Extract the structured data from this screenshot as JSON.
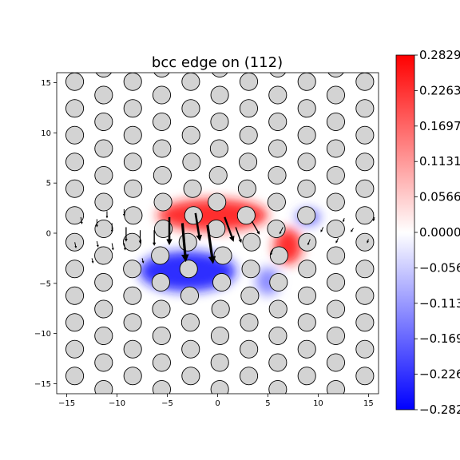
{
  "chart_data": {
    "type": "heatmap",
    "title": "bcc edge on (112)",
    "xlabel": "",
    "ylabel": "",
    "xlim": [
      -16,
      16
    ],
    "ylim": [
      -16,
      16
    ],
    "x_ticks": [
      -15,
      -10,
      -5,
      0,
      5,
      10,
      15
    ],
    "y_ticks": [
      -15,
      -10,
      -5,
      0,
      5,
      10,
      15
    ],
    "colorbar": {
      "cmap": "bwr",
      "min": -0.2829,
      "max": 0.2829,
      "ticks": [
        0.2829,
        0.2263,
        0.1697,
        0.1131,
        0.0566,
        0.0,
        -0.0566,
        -0.1131,
        -0.1697,
        -0.2263,
        -0.2829
      ],
      "tick_labels": [
        "0.2829",
        "0.2263",
        "0.1697",
        "0.1131",
        "0.0566",
        "0.0000",
        "−0.0566",
        "−0.1131",
        "−0.1697",
        "−0.2263",
        "−0.2829"
      ],
      "colors": {
        "max": "#ff0000",
        "mid": "#ffffff",
        "min": "#0000ff"
      }
    },
    "lattice": {
      "row_spacing": 1.3333,
      "column_spacing": 5.77,
      "even_row_x_offset": -5.56,
      "odd_row_x_offset": -2.67,
      "first_row_y": -15.56
    },
    "dislocation_core": {
      "x": 0.0,
      "y": 0.0
    },
    "strain_blobs": [
      {
        "sign": "positive",
        "center": [
          -0.5,
          1.8
        ],
        "spread": [
          5.5,
          1.6
        ],
        "value": 0.26
      },
      {
        "sign": "positive",
        "center": [
          7.0,
          -1.3
        ],
        "spread": [
          1.4,
          1.8
        ],
        "value": 0.26
      },
      {
        "sign": "negative",
        "center": [
          -3.0,
          -3.8
        ],
        "spread": [
          4.8,
          2.0
        ],
        "value": -0.26
      },
      {
        "sign": "negative",
        "center": [
          9.0,
          1.6
        ],
        "spread": [
          1.2,
          0.8
        ],
        "value": -0.18
      },
      {
        "sign": "negative",
        "center": [
          5.0,
          -4.8
        ],
        "spread": [
          1.2,
          1.4
        ],
        "value": -0.14
      }
    ],
    "displacement_arrows": [
      {
        "x": -7.7,
        "y": 0.3,
        "dx": 0.0,
        "dy": -1.2
      },
      {
        "x": -6.3,
        "y": 0.3,
        "dx": 0.0,
        "dy": -1.4
      },
      {
        "x": -4.8,
        "y": 1.6,
        "dx": 0.0,
        "dy": -2.5
      },
      {
        "x": -3.5,
        "y": 1.0,
        "dx": 0.3,
        "dy": -3.5
      },
      {
        "x": -2.2,
        "y": 2.0,
        "dx": 0.4,
        "dy": -2.5
      },
      {
        "x": -1.0,
        "y": 0.8,
        "dx": 0.5,
        "dy": -3.5
      },
      {
        "x": 0.7,
        "y": 1.6,
        "dx": 0.8,
        "dy": -2.2
      },
      {
        "x": 1.8,
        "y": 0.6,
        "dx": 0.5,
        "dy": -1.4
      },
      {
        "x": 3.4,
        "y": 1.2,
        "dx": 0.7,
        "dy": -1.2
      },
      {
        "x": -9.1,
        "y": 0.6,
        "dx": 0.0,
        "dy": -1.3
      },
      {
        "x": -10.5,
        "y": 1.0,
        "dx": 0.0,
        "dy": -0.8
      },
      {
        "x": -12.0,
        "y": 1.4,
        "dx": 0.0,
        "dy": -0.7
      },
      {
        "x": -13.6,
        "y": 1.6,
        "dx": 0.1,
        "dy": -0.6
      },
      {
        "x": -11.0,
        "y": 2.2,
        "dx": 0.0,
        "dy": -0.6
      },
      {
        "x": -9.3,
        "y": 2.4,
        "dx": 0.0,
        "dy": -0.6
      },
      {
        "x": -14.2,
        "y": -0.9,
        "dx": 0.1,
        "dy": -0.5
      },
      {
        "x": -12.0,
        "y": -0.8,
        "dx": 0.1,
        "dy": -0.5
      },
      {
        "x": -10.5,
        "y": -1.0,
        "dx": 0.1,
        "dy": -0.6
      },
      {
        "x": -9.3,
        "y": -1.0,
        "dx": 0.1,
        "dy": -0.6
      },
      {
        "x": 6.5,
        "y": 0.6,
        "dx": -0.3,
        "dy": -0.6
      },
      {
        "x": 9.2,
        "y": -0.6,
        "dx": -0.2,
        "dy": -0.5
      },
      {
        "x": 10.5,
        "y": 0.6,
        "dx": -0.2,
        "dy": -0.4
      },
      {
        "x": 12.0,
        "y": -0.5,
        "dx": -0.2,
        "dy": -0.4
      },
      {
        "x": 13.5,
        "y": 0.5,
        "dx": -0.2,
        "dy": -0.3
      },
      {
        "x": 15.0,
        "y": -0.6,
        "dx": -0.1,
        "dy": -0.3
      },
      {
        "x": 15.6,
        "y": 1.6,
        "dx": -0.1,
        "dy": -0.3
      },
      {
        "x": 12.6,
        "y": 1.5,
        "dx": -0.1,
        "dy": -0.3
      },
      {
        "x": -7.5,
        "y": -2.5,
        "dx": 0.1,
        "dy": -0.4
      },
      {
        "x": -12.5,
        "y": -2.5,
        "dx": 0.1,
        "dy": -0.4
      },
      {
        "x": 5.5,
        "y": -1.6,
        "dx": -0.2,
        "dy": -0.5
      }
    ]
  }
}
